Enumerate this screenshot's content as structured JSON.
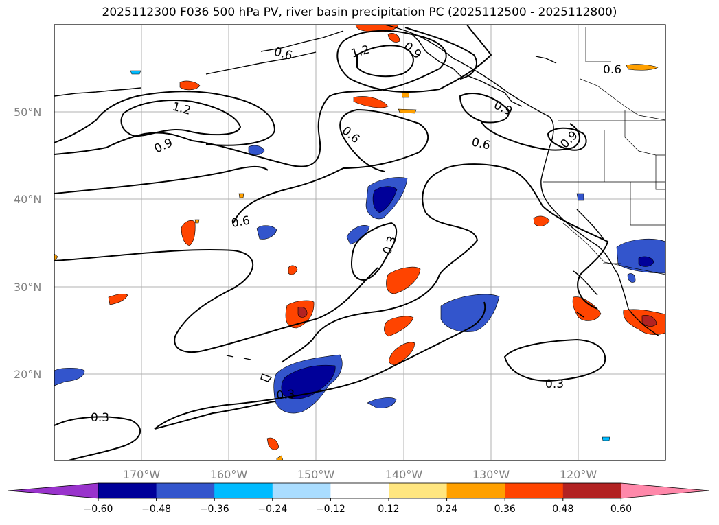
{
  "title": "2025112300 F036 500 hPa PV, river basin precipitation PC (2025112500 - 2025112800)",
  "lat_ticks": [
    "50°N",
    "40°N",
    "30°N",
    "20°N"
  ],
  "lon_ticks": [
    "170°W",
    "160°W",
    "150°W",
    "140°W",
    "130°W",
    "120°W"
  ],
  "contour_labels": [
    "1.2",
    "0.9",
    "0.6",
    "0.3"
  ],
  "colorbar": {
    "tick_labels": [
      "−0.60",
      "−0.48",
      "−0.36",
      "−0.24",
      "−0.12",
      "0.12",
      "0.24",
      "0.36",
      "0.48",
      "0.60"
    ],
    "colors": [
      "#9933cc",
      "#000099",
      "#3355cc",
      "#00bbff",
      "#aaddff",
      "#ffffff",
      "#ffe680",
      "#ffa000",
      "#ff4400",
      "#b22222",
      "#ff88aa"
    ]
  },
  "map_extent": {
    "lon": [
      -180,
      -110
    ],
    "lat": [
      10,
      60
    ]
  }
}
